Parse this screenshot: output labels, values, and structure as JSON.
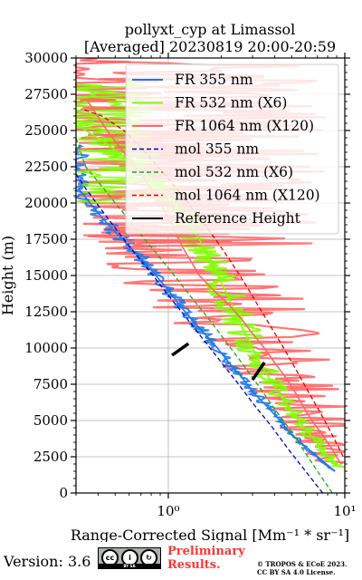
{
  "chart_data": {
    "type": "line",
    "title": "pollyxt_cyp at Limassol",
    "subtitle": "[Averaged] 20230819 20:00-20:59",
    "xlabel": "Range-Corrected Signal [Mm⁻¹ * sr⁻¹]",
    "ylabel": "Height (m)",
    "xscale": "log",
    "xlim": [
      0.3,
      10
    ],
    "ylim": [
      0,
      30000
    ],
    "grid": true,
    "legend_position": "top-right",
    "xticks": [
      {
        "value": 1,
        "label": "10⁰"
      },
      {
        "value": 10,
        "label": "10¹"
      }
    ],
    "yticks": [
      {
        "value": 0,
        "label": "0"
      },
      {
        "value": 2500,
        "label": "2500"
      },
      {
        "value": 5000,
        "label": "5000"
      },
      {
        "value": 7500,
        "label": "7500"
      },
      {
        "value": 10000,
        "label": "10000"
      },
      {
        "value": 12500,
        "label": "12500"
      },
      {
        "value": 15000,
        "label": "15000"
      },
      {
        "value": 17500,
        "label": "17500"
      },
      {
        "value": 20000,
        "label": "20000"
      },
      {
        "value": 22500,
        "label": "22500"
      },
      {
        "value": 25000,
        "label": "25000"
      },
      {
        "value": 27500,
        "label": "27500"
      },
      {
        "value": 30000,
        "label": "30000"
      }
    ],
    "series": [
      {
        "name": "FR 355 nm",
        "color": "#1f77e4",
        "style": "solid",
        "x": [
          8.8,
          7.5,
          6.0,
          5.0,
          4.3,
          3.6,
          3.0,
          2.6,
          2.2,
          1.9,
          1.6,
          1.35,
          1.15,
          1.0,
          0.85,
          0.72,
          0.6,
          0.5,
          0.42,
          0.36,
          0.31
        ],
        "y": [
          1500,
          2200,
          3200,
          4000,
          5000,
          6000,
          7000,
          8000,
          9000,
          10000,
          11000,
          12000,
          13000,
          14000,
          15000,
          16000,
          17000,
          18000,
          19000,
          20000,
          21000
        ]
      },
      {
        "name": "FR 532 nm (X6)",
        "color": "#80ff00",
        "style": "solid",
        "x": [
          9.5,
          8.0,
          6.8,
          5.8,
          5.0,
          4.4,
          3.9,
          3.4,
          3.0,
          2.6,
          2.3,
          2.0,
          1.75,
          1.5,
          1.25,
          1.05,
          0.85,
          0.7,
          0.55,
          0.42,
          0.32
        ],
        "y": [
          1800,
          2600,
          3600,
          4600,
          5600,
          6600,
          7600,
          8700,
          10000,
          11500,
          13000,
          14500,
          16000,
          17500,
          19000,
          20200,
          21300,
          22300,
          23300,
          24300,
          25200
        ]
      },
      {
        "name": "FR 1064 nm (X120)",
        "color": "#ff6666",
        "style": "solid",
        "x": [
          9.5,
          8.5,
          7.5,
          6.5,
          5.8,
          5.2,
          4.6,
          4.0,
          3.5,
          3.0,
          2.6,
          2.2,
          1.8,
          1.5,
          1.2,
          1.0,
          0.8,
          0.6,
          0.45,
          0.35
        ],
        "y": [
          2000,
          3000,
          4000,
          5000,
          6000,
          7000,
          8000,
          9000,
          10000,
          11000,
          12000,
          13000,
          14000,
          15000,
          17000,
          19000,
          21000,
          23000,
          25000,
          27000
        ]
      },
      {
        "name": "mol 355 nm",
        "color": "#0000d0",
        "style": "dashed",
        "x": [
          7.5,
          6.0,
          4.8,
          3.9,
          3.1,
          2.5,
          2.0,
          1.6,
          1.28,
          1.02,
          0.82,
          0.65,
          0.52,
          0.42,
          0.34,
          0.3
        ],
        "y": [
          0,
          1500,
          3000,
          4500,
          6000,
          7500,
          9000,
          10500,
          12000,
          13500,
          15000,
          16500,
          18000,
          19500,
          21000,
          22000
        ]
      },
      {
        "name": "mol 532 nm (X6)",
        "color": "#10b010",
        "style": "dashed",
        "x": [
          8.5,
          7.0,
          5.8,
          4.8,
          3.9,
          3.2,
          2.6,
          2.1,
          1.7,
          1.35,
          1.08,
          0.86,
          0.68,
          0.54,
          0.43,
          0.34,
          0.3
        ],
        "y": [
          0,
          1500,
          3000,
          4500,
          6000,
          7500,
          9000,
          10500,
          12000,
          13500,
          15000,
          16500,
          18000,
          19500,
          21000,
          22500,
          24500
        ]
      },
      {
        "name": "mol 1064 nm (X120)",
        "color": "#e00000",
        "style": "dashed",
        "x": [
          9.8,
          8.5,
          7.3,
          6.2,
          5.3,
          4.5,
          3.8,
          3.2,
          2.7,
          2.25,
          1.85,
          1.5,
          1.2,
          0.95,
          0.74,
          0.56,
          0.42,
          0.32
        ],
        "y": [
          2500,
          4000,
          5500,
          7000,
          8500,
          10000,
          11500,
          13000,
          14500,
          16000,
          17500,
          19000,
          20500,
          22000,
          23500,
          25000,
          26000,
          26500
        ]
      },
      {
        "name": "Reference Height",
        "color": "#000000",
        "style": "solid",
        "segments": [
          {
            "x": [
              1.05,
              1.3
            ],
            "y": [
              9500,
              10300
            ]
          },
          {
            "x": [
              3.0,
              3.5
            ],
            "y": [
              7800,
              9000
            ]
          }
        ]
      }
    ]
  },
  "footer": {
    "version": "Version: 3.6",
    "cc_badge": {
      "cc": "cc",
      "by": "i",
      "sa": "↻",
      "strip": "BY SA"
    },
    "preliminary_line1": "Preliminary",
    "preliminary_line2": "Results.",
    "copyright_line1": "© TROPOS & ECoE 2023.",
    "copyright_line2": "CC BY SA 4.0 License."
  }
}
